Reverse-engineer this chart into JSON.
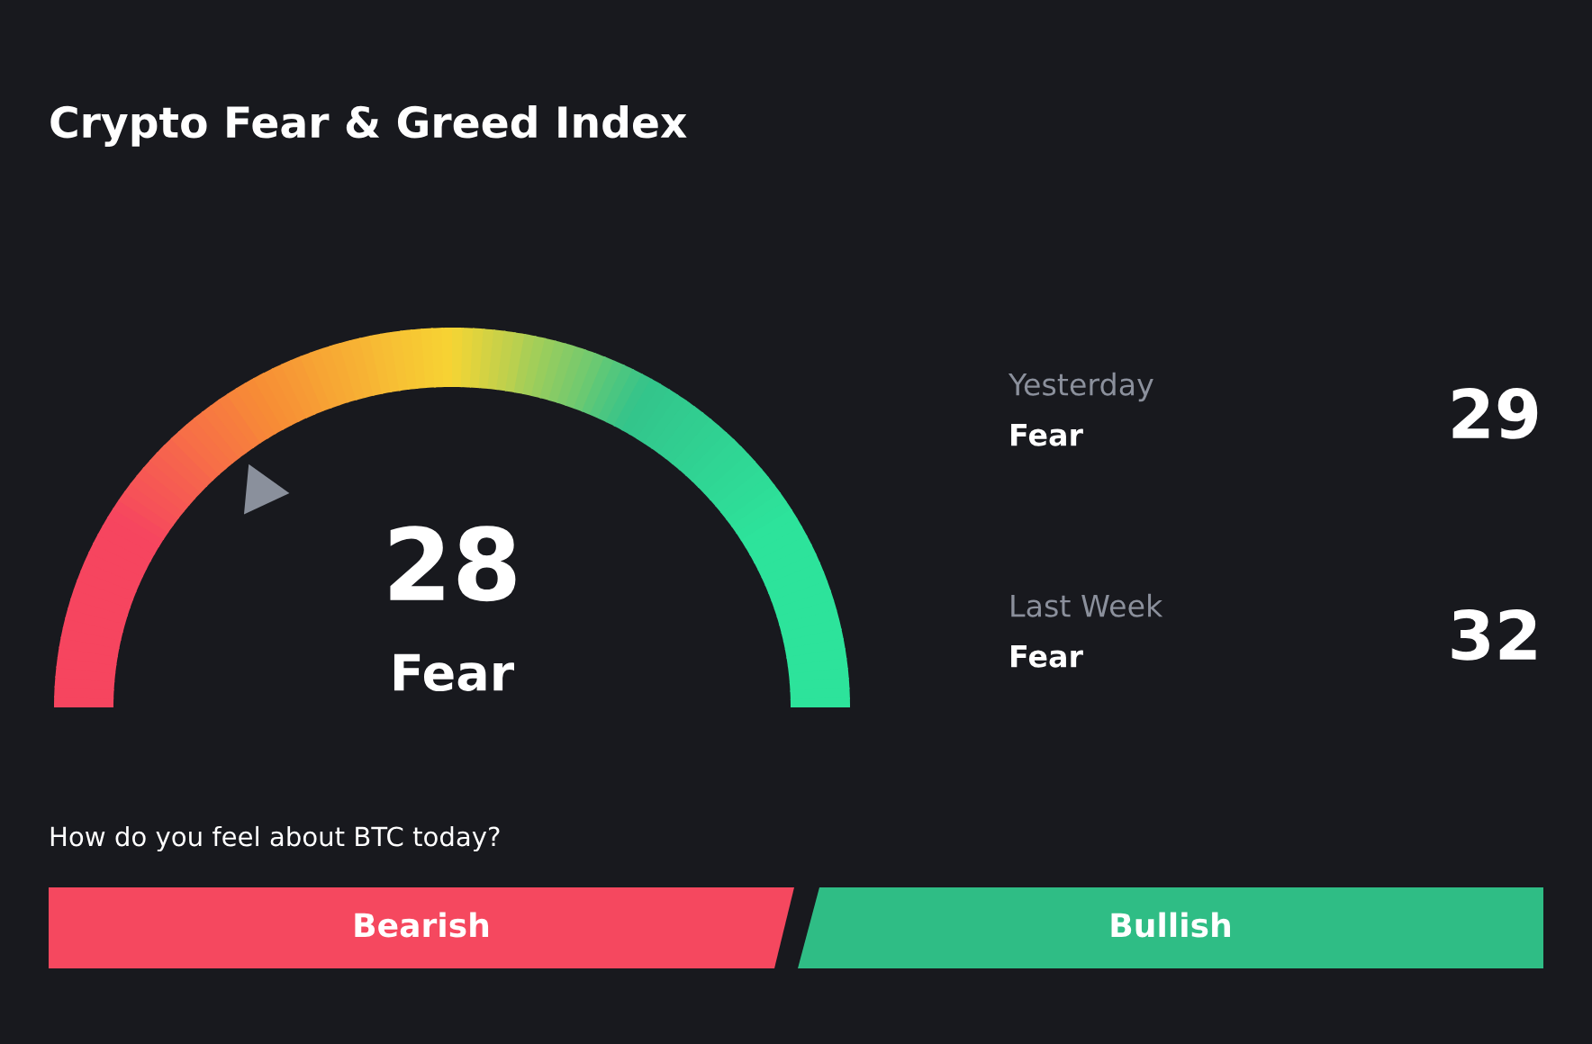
{
  "chart_data": [
    {
      "type": "other",
      "title": "Crypto Fear & Greed Index",
      "categories": [
        "Fear"
      ],
      "values": [
        28
      ],
      "data_labels": true
    },
    {
      "type": "other",
      "categories": [
        "Yesterday",
        "Last Week"
      ],
      "values": [
        29,
        32
      ],
      "data_labels": true,
      "annotations": [
        "Fear",
        "Fear"
      ]
    },
    {
      "type": "other",
      "title": "How do you feel about BTC today?",
      "categories": [
        "Bearish",
        "Bullish"
      ],
      "colors": [
        "#f5485f",
        "#2fbd85"
      ]
    }
  ]
}
